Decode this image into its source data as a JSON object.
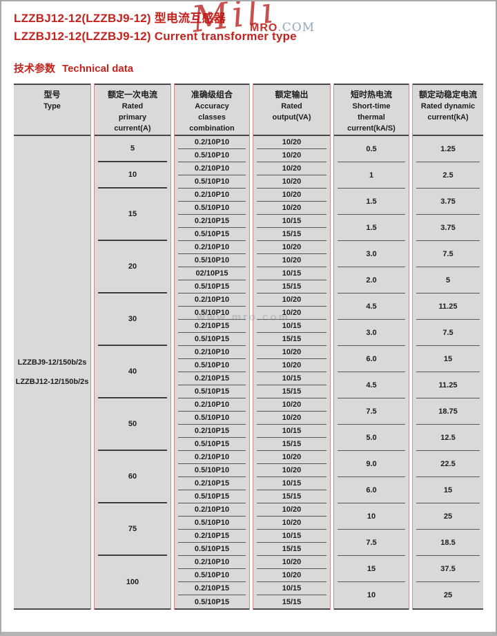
{
  "page": {
    "title_line1": "LZZBJ12-12(LZZBJ9-12) 型电流互感器",
    "title_line2": "LZZBJ12-12(LZZBJ9-12) Current transformer type",
    "section_zh": "技术参数",
    "section_en": "Technical data"
  },
  "watermark": {
    "script": "Mili",
    "brand": "MRO",
    "suffix": ".COM",
    "center_text": "www.mro.com"
  },
  "colors": {
    "accent_red": "#c4231d",
    "table_cell_bg": "#d9d9d9",
    "divider_red": "#d28a8a",
    "line_dark": "#474747"
  },
  "table": {
    "headers": [
      {
        "zh": "型号",
        "en": [
          "Type"
        ]
      },
      {
        "zh": "额定一次电流",
        "en": [
          "Rated",
          "primary",
          "current(A)"
        ]
      },
      {
        "zh": "准确级组合",
        "en": [
          "Accuracy",
          "classes",
          "combination"
        ]
      },
      {
        "zh": "额定输出",
        "en": [
          "Rated",
          "output(VA)"
        ]
      },
      {
        "zh": "短时热电流",
        "en": [
          "Short-time",
          "thermal",
          "current(kA/S)"
        ]
      },
      {
        "zh": "额定动稳定电流",
        "en": [
          "Rated dynamic",
          "current(kA)"
        ]
      }
    ],
    "type_labels": [
      "LZZBJ9-12/150b/2s",
      "LZZBJ12-12/150b/2s"
    ],
    "groups": [
      {
        "primary": "5",
        "rows": [
          [
            "0.2/10P10",
            "10/20"
          ],
          [
            "0.5/10P10",
            "10/20"
          ]
        ],
        "pairs": [
          [
            "0.5",
            "1.25"
          ]
        ]
      },
      {
        "primary": "10",
        "rows": [
          [
            "0.2/10P10",
            "10/20"
          ],
          [
            "0.5/10P10",
            "10/20"
          ]
        ],
        "pairs": [
          [
            "1",
            "2.5"
          ]
        ]
      },
      {
        "primary": "15",
        "rows": [
          [
            "0.2/10P10",
            "10/20"
          ],
          [
            "0.5/10P10",
            "10/20"
          ],
          [
            "0.2/10P15",
            "10/15"
          ],
          [
            "0.5/10P15",
            "15/15"
          ]
        ],
        "pairs": [
          [
            "1.5",
            "3.75"
          ],
          [
            "1.5",
            "3.75"
          ]
        ]
      },
      {
        "primary": "20",
        "rows": [
          [
            "0.2/10P10",
            "10/20"
          ],
          [
            "0.5/10P10",
            "10/20"
          ],
          [
            "02/10P15",
            "10/15"
          ],
          [
            "0.5/10P15",
            "15/15"
          ]
        ],
        "pairs": [
          [
            "3.0",
            "7.5"
          ],
          [
            "2.0",
            "5"
          ]
        ]
      },
      {
        "primary": "30",
        "rows": [
          [
            "0.2/10P10",
            "10/20"
          ],
          [
            "0.5/10P10",
            "10/20"
          ],
          [
            "0.2/10P15",
            "10/15"
          ],
          [
            "0.5/10P15",
            "15/15"
          ]
        ],
        "pairs": [
          [
            "4.5",
            "11.25"
          ],
          [
            "3.0",
            "7.5"
          ]
        ]
      },
      {
        "primary": "40",
        "rows": [
          [
            "0.2/10P10",
            "10/20"
          ],
          [
            "0.5/10P10",
            "10/20"
          ],
          [
            "0.2/10P15",
            "10/15"
          ],
          [
            "0.5/10P15",
            "15/15"
          ]
        ],
        "pairs": [
          [
            "6.0",
            "15"
          ],
          [
            "4.5",
            "11.25"
          ]
        ]
      },
      {
        "primary": "50",
        "rows": [
          [
            "0.2/10P10",
            "10/20"
          ],
          [
            "0.5/10P10",
            "10/20"
          ],
          [
            "0.2/10P15",
            "10/15"
          ],
          [
            "0.5/10P15",
            "15/15"
          ]
        ],
        "pairs": [
          [
            "7.5",
            "18.75"
          ],
          [
            "5.0",
            "12.5"
          ]
        ]
      },
      {
        "primary": "60",
        "rows": [
          [
            "0.2/10P10",
            "10/20"
          ],
          [
            "0.5/10P10",
            "10/20"
          ],
          [
            "0.2/10P15",
            "10/15"
          ],
          [
            "0.5/10P15",
            "15/15"
          ]
        ],
        "pairs": [
          [
            "9.0",
            "22.5"
          ],
          [
            "6.0",
            "15"
          ]
        ]
      },
      {
        "primary": "75",
        "rows": [
          [
            "0.2/10P10",
            "10/20"
          ],
          [
            "0.5/10P10",
            "10/20"
          ],
          [
            "0.2/10P15",
            "10/15"
          ],
          [
            "0.5/10P15",
            "15/15"
          ]
        ],
        "pairs": [
          [
            "10",
            "25"
          ],
          [
            "7.5",
            "18.5"
          ]
        ]
      },
      {
        "primary": "100",
        "rows": [
          [
            "0.2/10P10",
            "10/20"
          ],
          [
            "0.5/10P10",
            "10/20"
          ],
          [
            "0.2/10P15",
            "10/15"
          ],
          [
            "0.5/10P15",
            "15/15"
          ]
        ],
        "pairs": [
          [
            "15",
            "37.5"
          ],
          [
            "10",
            "25"
          ]
        ]
      }
    ]
  }
}
